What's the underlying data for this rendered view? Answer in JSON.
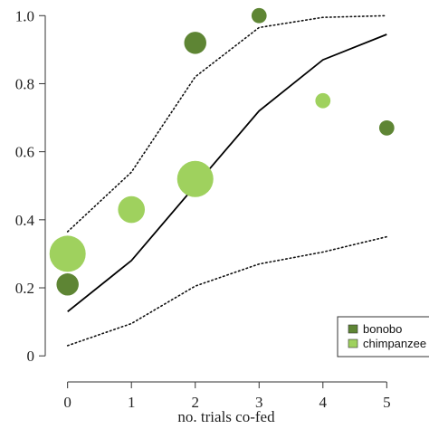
{
  "chart_data": {
    "type": "scatter",
    "xlabel": "no. trials co-fed",
    "ylabel": "",
    "xlim": [
      -0.35,
      5.35
    ],
    "ylim": [
      -0.05,
      1.03
    ],
    "x_ticks": [
      0,
      1,
      2,
      3,
      4,
      5
    ],
    "y_ticks": [
      0,
      0.2,
      0.4,
      0.6,
      0.8,
      1.0
    ],
    "y_tick_labels": [
      "0",
      "0.2",
      "0.4",
      "0.6",
      "0.8",
      "1.0"
    ],
    "grid": false,
    "legend_position": "bottom-right",
    "series": [
      {
        "name": "bonobo",
        "color": "#5e8534",
        "points": [
          {
            "x": 0,
            "y": 0.21,
            "size": 1.5
          },
          {
            "x": 2,
            "y": 0.92,
            "size": 1.5
          },
          {
            "x": 3,
            "y": 1.0,
            "size": 0.7
          },
          {
            "x": 5,
            "y": 0.67,
            "size": 0.7
          }
        ]
      },
      {
        "name": "chimpanzee",
        "color": "#9fd15e",
        "points": [
          {
            "x": 0,
            "y": 0.3,
            "size": 4.0
          },
          {
            "x": 1,
            "y": 0.43,
            "size": 2.2
          },
          {
            "x": 2,
            "y": 0.52,
            "size": 4.0
          },
          {
            "x": 4,
            "y": 0.75,
            "size": 0.7
          }
        ]
      }
    ],
    "fit_line": {
      "x": [
        0,
        1,
        2,
        3,
        4,
        5
      ],
      "y": [
        0.13,
        0.28,
        0.5,
        0.72,
        0.87,
        0.945
      ]
    },
    "ci_upper": {
      "x": [
        0,
        1,
        2,
        3,
        4,
        5
      ],
      "y": [
        0.365,
        0.54,
        0.82,
        0.965,
        0.995,
        1.0
      ]
    },
    "ci_lower": {
      "x": [
        0,
        1,
        2,
        3,
        4,
        5
      ],
      "y": [
        0.03,
        0.095,
        0.205,
        0.27,
        0.305,
        0.35
      ]
    }
  }
}
